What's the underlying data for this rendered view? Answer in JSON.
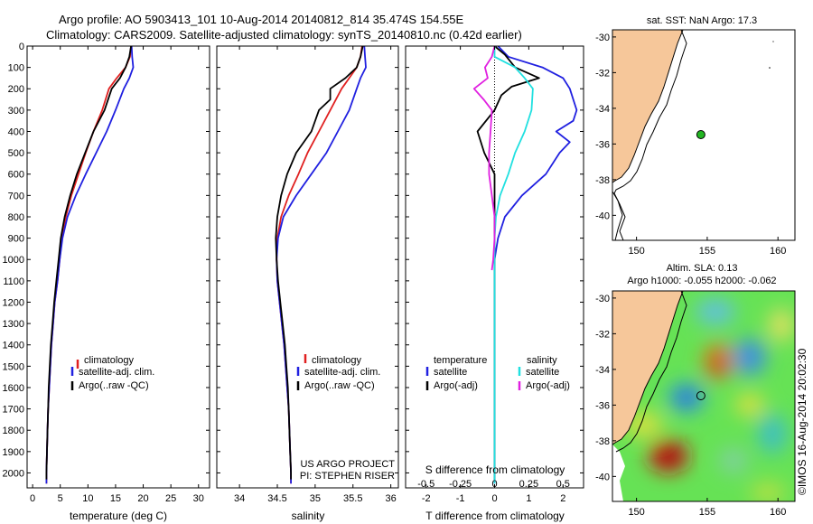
{
  "header": {
    "title_line1": "Argo profile: AO 5903413_101 10-Aug-2014 20140812_814 35.474S 154.55E",
    "title_line2": "Climatology: CARS2009. Satellite-adjusted climatology: synTS_20140810.nc (0.42d earlier)"
  },
  "colors": {
    "climatology": "#e02020",
    "satellite": "#2020e0",
    "argo": "#000000",
    "satellite_s": "#20e0e0",
    "argo_s": "#e020e0",
    "land": "#f6c79a"
  },
  "chart_data": [
    {
      "type": "line",
      "name": "temperature-profile",
      "title": "",
      "xlabel": "temperature (deg C)",
      "ylabel": "",
      "xlim": [
        -1,
        32
      ],
      "ylim": [
        2070,
        0
      ],
      "xticks": [
        0,
        5,
        10,
        15,
        20,
        25,
        30
      ],
      "yticks": [
        0,
        100,
        200,
        300,
        400,
        500,
        600,
        700,
        800,
        900,
        1000,
        1100,
        1200,
        1300,
        1400,
        1500,
        1600,
        1700,
        1800,
        1900,
        2000
      ],
      "legend": [
        "climatology",
        "satellite-adj. clim.",
        "Argo(..raw -QC)"
      ],
      "series": [
        {
          "name": "climatology",
          "color_key": "climatology",
          "points": [
            [
              17.8,
              0
            ],
            [
              17.6,
              50
            ],
            [
              16.8,
              100
            ],
            [
              15.2,
              150
            ],
            [
              13.8,
              200
            ],
            [
              12.6,
              300
            ],
            [
              11.0,
              400
            ],
            [
              9.6,
              500
            ],
            [
              8.3,
              600
            ],
            [
              7.0,
              700
            ],
            [
              6.0,
              800
            ],
            [
              5.3,
              900
            ],
            [
              4.9,
              1000
            ],
            [
              4.5,
              1100
            ],
            [
              4.0,
              1200
            ],
            [
              3.7,
              1300
            ],
            [
              3.4,
              1400
            ],
            [
              3.2,
              1500
            ],
            [
              3.0,
              1600
            ],
            [
              2.8,
              1700
            ],
            [
              2.7,
              1800
            ],
            [
              2.6,
              1900
            ],
            [
              2.5,
              2000
            ],
            [
              2.5,
              2050
            ]
          ]
        },
        {
          "name": "satellite-adj. clim.",
          "color_key": "satellite",
          "points": [
            [
              17.9,
              0
            ],
            [
              18.0,
              50
            ],
            [
              18.2,
              100
            ],
            [
              17.5,
              150
            ],
            [
              16.5,
              200
            ],
            [
              15.0,
              300
            ],
            [
              13.4,
              400
            ],
            [
              11.5,
              500
            ],
            [
              9.6,
              600
            ],
            [
              7.8,
              700
            ],
            [
              6.3,
              800
            ],
            [
              5.4,
              900
            ],
            [
              4.9,
              1000
            ],
            [
              4.5,
              1100
            ],
            [
              4.0,
              1200
            ],
            [
              3.7,
              1300
            ],
            [
              3.4,
              1400
            ],
            [
              3.2,
              1500
            ],
            [
              3.0,
              1600
            ],
            [
              2.8,
              1700
            ],
            [
              2.7,
              1800
            ],
            [
              2.6,
              1900
            ],
            [
              2.5,
              2000
            ],
            [
              2.5,
              2050
            ]
          ]
        },
        {
          "name": "Argo(..raw -QC)",
          "color_key": "argo",
          "points": [
            [
              17.8,
              0
            ],
            [
              17.5,
              50
            ],
            [
              16.8,
              100
            ],
            [
              15.8,
              150
            ],
            [
              14.3,
              200
            ],
            [
              13.0,
              300
            ],
            [
              11.0,
              400
            ],
            [
              9.5,
              500
            ],
            [
              8.0,
              600
            ],
            [
              6.8,
              700
            ],
            [
              5.8,
              800
            ],
            [
              5.1,
              900
            ],
            [
              4.7,
              1000
            ],
            [
              4.3,
              1100
            ],
            [
              3.9,
              1200
            ],
            [
              3.6,
              1300
            ],
            [
              3.3,
              1400
            ],
            [
              3.1,
              1500
            ],
            [
              2.9,
              1600
            ],
            [
              2.8,
              1700
            ],
            [
              2.7,
              1800
            ],
            [
              2.6,
              1900
            ],
            [
              2.5,
              2000
            ],
            [
              2.5,
              2030
            ]
          ]
        }
      ]
    },
    {
      "type": "line",
      "name": "salinity-profile",
      "title": "",
      "xlabel": "salinity",
      "ylabel": "",
      "xlim": [
        33.7,
        36.1
      ],
      "ylim": [
        2070,
        0
      ],
      "xticks": [
        34,
        34.5,
        35,
        35.5,
        36
      ],
      "xtick_labels": [
        "34",
        "34.5",
        "35",
        "35.5",
        "36"
      ],
      "yticks": [
        0,
        100,
        200,
        300,
        400,
        500,
        600,
        700,
        800,
        900,
        1000,
        1100,
        1200,
        1300,
        1400,
        1500,
        1600,
        1700,
        1800,
        1900,
        2000
      ],
      "legend": [
        "climatology",
        "satellite-adj. clim.",
        "Argo(..raw -QC)"
      ],
      "annotations": [
        "US ARGO PROJECT",
        "PI: STEPHEN RISER"
      ],
      "series": [
        {
          "name": "climatology",
          "color_key": "climatology",
          "points": [
            [
              35.62,
              0
            ],
            [
              35.6,
              50
            ],
            [
              35.55,
              100
            ],
            [
              35.45,
              150
            ],
            [
              35.35,
              200
            ],
            [
              35.2,
              300
            ],
            [
              35.05,
              400
            ],
            [
              34.9,
              500
            ],
            [
              34.78,
              600
            ],
            [
              34.65,
              700
            ],
            [
              34.55,
              800
            ],
            [
              34.5,
              900
            ],
            [
              34.49,
              1000
            ],
            [
              34.5,
              1100
            ],
            [
              34.53,
              1200
            ],
            [
              34.56,
              1300
            ],
            [
              34.59,
              1400
            ],
            [
              34.61,
              1500
            ],
            [
              34.63,
              1600
            ],
            [
              34.65,
              1700
            ],
            [
              34.66,
              1800
            ],
            [
              34.67,
              1900
            ],
            [
              34.68,
              2000
            ],
            [
              34.68,
              2050
            ]
          ]
        },
        {
          "name": "satellite-adj. clim.",
          "color_key": "satellite",
          "points": [
            [
              35.65,
              0
            ],
            [
              35.66,
              50
            ],
            [
              35.67,
              100
            ],
            [
              35.6,
              150
            ],
            [
              35.55,
              200
            ],
            [
              35.45,
              300
            ],
            [
              35.3,
              400
            ],
            [
              35.15,
              500
            ],
            [
              34.95,
              600
            ],
            [
              34.75,
              700
            ],
            [
              34.58,
              800
            ],
            [
              34.51,
              900
            ],
            [
              34.49,
              1000
            ],
            [
              34.5,
              1100
            ],
            [
              34.53,
              1200
            ],
            [
              34.56,
              1300
            ],
            [
              34.59,
              1400
            ],
            [
              34.61,
              1500
            ],
            [
              34.63,
              1600
            ],
            [
              34.65,
              1700
            ],
            [
              34.66,
              1800
            ],
            [
              34.67,
              1900
            ],
            [
              34.68,
              2000
            ],
            [
              34.68,
              2050
            ]
          ]
        },
        {
          "name": "Argo(..raw -QC)",
          "color_key": "argo",
          "points": [
            [
              35.63,
              0
            ],
            [
              35.6,
              50
            ],
            [
              35.55,
              100
            ],
            [
              35.4,
              150
            ],
            [
              35.2,
              200
            ],
            [
              35.2,
              250
            ],
            [
              35.05,
              300
            ],
            [
              34.95,
              400
            ],
            [
              34.75,
              500
            ],
            [
              34.63,
              600
            ],
            [
              34.55,
              700
            ],
            [
              34.5,
              800
            ],
            [
              34.48,
              900
            ],
            [
              34.49,
              1000
            ],
            [
              34.51,
              1100
            ],
            [
              34.54,
              1200
            ],
            [
              34.57,
              1300
            ],
            [
              34.6,
              1400
            ],
            [
              34.62,
              1500
            ],
            [
              34.64,
              1600
            ],
            [
              34.65,
              1700
            ],
            [
              34.66,
              1800
            ],
            [
              34.67,
              1900
            ],
            [
              34.68,
              2000
            ],
            [
              34.68,
              2030
            ]
          ]
        }
      ]
    },
    {
      "type": "line",
      "name": "difference-profile",
      "title": "",
      "xlabel": "T difference from climatology",
      "xlabel_top": "S difference from climatology",
      "ylabel": "",
      "xlim": [
        -2.6,
        2.6
      ],
      "ylim": [
        2070,
        0
      ],
      "xticks": [
        -2,
        -1,
        0,
        1,
        2
      ],
      "xtick_labels": [
        "-2",
        "-1",
        "0",
        "1",
        "2"
      ],
      "s_ticks": [
        -0.5,
        -0.25,
        0,
        0.25,
        0.5
      ],
      "s_tick_labels": [
        "-0.5",
        "-0.25",
        "0",
        "0.25",
        "0.5"
      ],
      "s_scale": 4,
      "yticks": [
        0,
        100,
        200,
        300,
        400,
        500,
        600,
        700,
        800,
        900,
        1000,
        1100,
        1200,
        1300,
        1400,
        1500,
        1600,
        1700,
        1800,
        1900,
        2000
      ],
      "legend_headers": [
        "temperature",
        "salinity"
      ],
      "legend_left": [
        "satellite",
        "Argo(-adj)"
      ],
      "legend_right": [
        "satellite",
        "Argo(-adj)"
      ],
      "series": [
        {
          "name": "temperature satellite",
          "color_key": "satellite",
          "points": [
            [
              0.1,
              0
            ],
            [
              0.4,
              50
            ],
            [
              1.4,
              100
            ],
            [
              2.0,
              150
            ],
            [
              2.2,
              200
            ],
            [
              2.4,
              300
            ],
            [
              2.3,
              350
            ],
            [
              1.8,
              400
            ],
            [
              2.2,
              450
            ],
            [
              1.9,
              500
            ],
            [
              1.5,
              600
            ],
            [
              0.8,
              700
            ],
            [
              0.3,
              800
            ],
            [
              0.1,
              900
            ],
            [
              0.0,
              1000
            ],
            [
              0.0,
              1200
            ],
            [
              0.0,
              2050
            ]
          ]
        },
        {
          "name": "temperature Argo(-adj)",
          "color_key": "argo",
          "points": [
            [
              0.0,
              0
            ],
            [
              0.3,
              40
            ],
            [
              0.6,
              100
            ],
            [
              1.3,
              150
            ],
            [
              0.5,
              190
            ],
            [
              0.2,
              230
            ],
            [
              0.0,
              300
            ],
            [
              -0.5,
              400
            ],
            [
              -0.3,
              500
            ],
            [
              0.0,
              600
            ],
            [
              0.0,
              700
            ],
            [
              0.0,
              1000
            ],
            [
              0.0,
              2030
            ]
          ]
        },
        {
          "name": "salinity satellite",
          "color_key": "satellite_s",
          "points": [
            [
              0.0,
              0
            ],
            [
              0.0,
              50
            ],
            [
              0.15,
              100
            ],
            [
              0.22,
              150
            ],
            [
              0.28,
              200
            ],
            [
              0.27,
              300
            ],
            [
              0.22,
              400
            ],
            [
              0.15,
              500
            ],
            [
              0.1,
              600
            ],
            [
              0.04,
              700
            ],
            [
              0.01,
              800
            ],
            [
              0.0,
              900
            ],
            [
              0.0,
              1100
            ],
            [
              0.0,
              2050
            ]
          ]
        },
        {
          "name": "salinity Argo(-adj)",
          "color_key": "argo_s",
          "points": [
            [
              0.0,
              0
            ],
            [
              -0.02,
              50
            ],
            [
              -0.07,
              100
            ],
            [
              -0.05,
              150
            ],
            [
              -0.15,
              200
            ],
            [
              -0.08,
              250
            ],
            [
              -0.02,
              300
            ],
            [
              -0.03,
              400
            ],
            [
              -0.04,
              500
            ],
            [
              -0.04,
              600
            ],
            [
              -0.02,
              700
            ],
            [
              0.0,
              800
            ],
            [
              0.0,
              900
            ],
            [
              -0.01,
              1000
            ],
            [
              -0.02,
              1050
            ]
          ]
        }
      ]
    }
  ],
  "map_top": {
    "title": "sat. SST: NaN Argo: 17.3",
    "xlim": [
      148.3,
      161.2
    ],
    "ylim": [
      -41.4,
      -29.6
    ],
    "xticks": [
      150,
      155,
      160
    ],
    "xtick_labels": [
      "150",
      "155",
      "160"
    ],
    "yticks": [
      -30,
      -32,
      -34,
      -36,
      -38,
      -40
    ],
    "ytick_labels": [
      "-30",
      "-32",
      "-34",
      "-36",
      "-38",
      "-40"
    ],
    "float_position": [
      154.55,
      -35.474
    ]
  },
  "map_bottom": {
    "title_line1": "Altim. SLA: 0.13",
    "title_line2": "Argo h1000: -0.055 h2000: -0.062",
    "xlim": [
      148.3,
      161.2
    ],
    "ylim": [
      -41.4,
      -29.6
    ],
    "xticks": [
      150,
      155,
      160
    ],
    "xtick_labels": [
      "150",
      "155",
      "160"
    ],
    "yticks": [
      -30,
      -32,
      -34,
      -36,
      -38,
      -40
    ],
    "ytick_labels": [
      "-30",
      "-32",
      "-34",
      "-36",
      "-38",
      "-40"
    ],
    "float_position": [
      154.55,
      -35.474
    ]
  },
  "footer": {
    "stamp": "©IMOS 16-Aug-2014 20:02:30"
  }
}
